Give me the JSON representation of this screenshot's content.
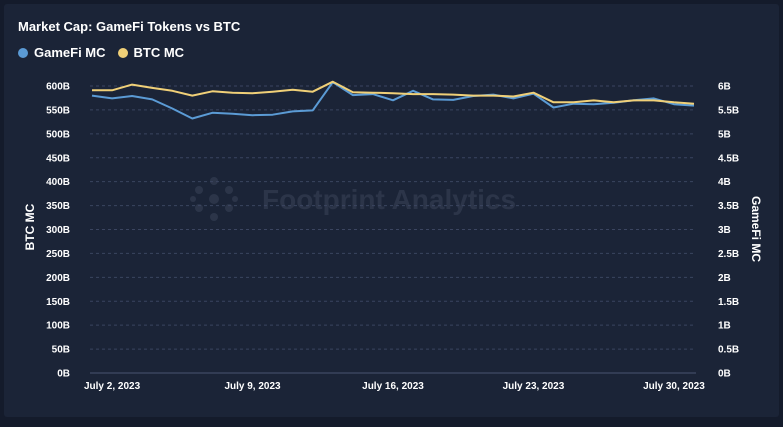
{
  "chart_data": {
    "type": "line",
    "title": "Market Cap: GameFi Tokens vs BTC",
    "watermark": "Footprint Analytics",
    "x": [
      "2023-07-01",
      "2023-07-02",
      "2023-07-03",
      "2023-07-04",
      "2023-07-05",
      "2023-07-06",
      "2023-07-07",
      "2023-07-08",
      "2023-07-09",
      "2023-07-10",
      "2023-07-11",
      "2023-07-12",
      "2023-07-13",
      "2023-07-14",
      "2023-07-15",
      "2023-07-16",
      "2023-07-17",
      "2023-07-18",
      "2023-07-19",
      "2023-07-20",
      "2023-07-21",
      "2023-07-22",
      "2023-07-23",
      "2023-07-24",
      "2023-07-25",
      "2023-07-26",
      "2023-07-27",
      "2023-07-28",
      "2023-07-29",
      "2023-07-30",
      "2023-07-31"
    ],
    "x_ticks": [
      {
        "date": "2023-07-02",
        "label": "July 2, 2023"
      },
      {
        "date": "2023-07-09",
        "label": "July 9, 2023"
      },
      {
        "date": "2023-07-16",
        "label": "July 16, 2023"
      },
      {
        "date": "2023-07-23",
        "label": "July 23, 2023"
      },
      {
        "date": "2023-07-30",
        "label": "July 30, 2023"
      }
    ],
    "left_axis": {
      "label": "BTC MC",
      "ylim": [
        0,
        600
      ],
      "tick_values": [
        0,
        50,
        100,
        150,
        200,
        250,
        300,
        350,
        400,
        450,
        500,
        550,
        600
      ],
      "tick_labels": [
        "0B",
        "50B",
        "100B",
        "150B",
        "200B",
        "250B",
        "300B",
        "350B",
        "400B",
        "450B",
        "500B",
        "550B",
        "600B"
      ]
    },
    "right_axis": {
      "label": "GameFi MC",
      "ylim": [
        0,
        6
      ],
      "tick_values": [
        0,
        0.5,
        1,
        1.5,
        2,
        2.5,
        3,
        3.5,
        4,
        4.5,
        5,
        5.5,
        6
      ],
      "tick_labels": [
        "0B",
        "0.5B",
        "1B",
        "1.5B",
        "2B",
        "2.5B",
        "3B",
        "3.5B",
        "4B",
        "4.5B",
        "5B",
        "5.5B",
        "6B"
      ]
    },
    "series": [
      {
        "name": "GameFi MC",
        "axis": "right",
        "color": "#5b9bd5",
        "values": [
          5.8,
          5.74,
          5.79,
          5.72,
          5.53,
          5.32,
          5.44,
          5.42,
          5.39,
          5.4,
          5.47,
          5.49,
          6.08,
          5.81,
          5.83,
          5.7,
          5.9,
          5.72,
          5.71,
          5.79,
          5.82,
          5.74,
          5.84,
          5.55,
          5.63,
          5.62,
          5.65,
          5.7,
          5.74,
          5.62,
          5.59
        ]
      },
      {
        "name": "BTC MC",
        "axis": "left",
        "color": "#f0d078",
        "values": [
          591,
          591,
          603,
          596,
          590,
          580,
          589,
          586,
          585,
          588,
          592,
          588,
          609,
          587,
          586,
          585,
          583,
          583,
          582,
          580,
          580,
          578,
          586,
          566,
          566,
          570,
          566,
          570,
          570,
          566,
          563
        ]
      }
    ],
    "grid": "horizontal-dashed",
    "legend_position": "top-left"
  }
}
